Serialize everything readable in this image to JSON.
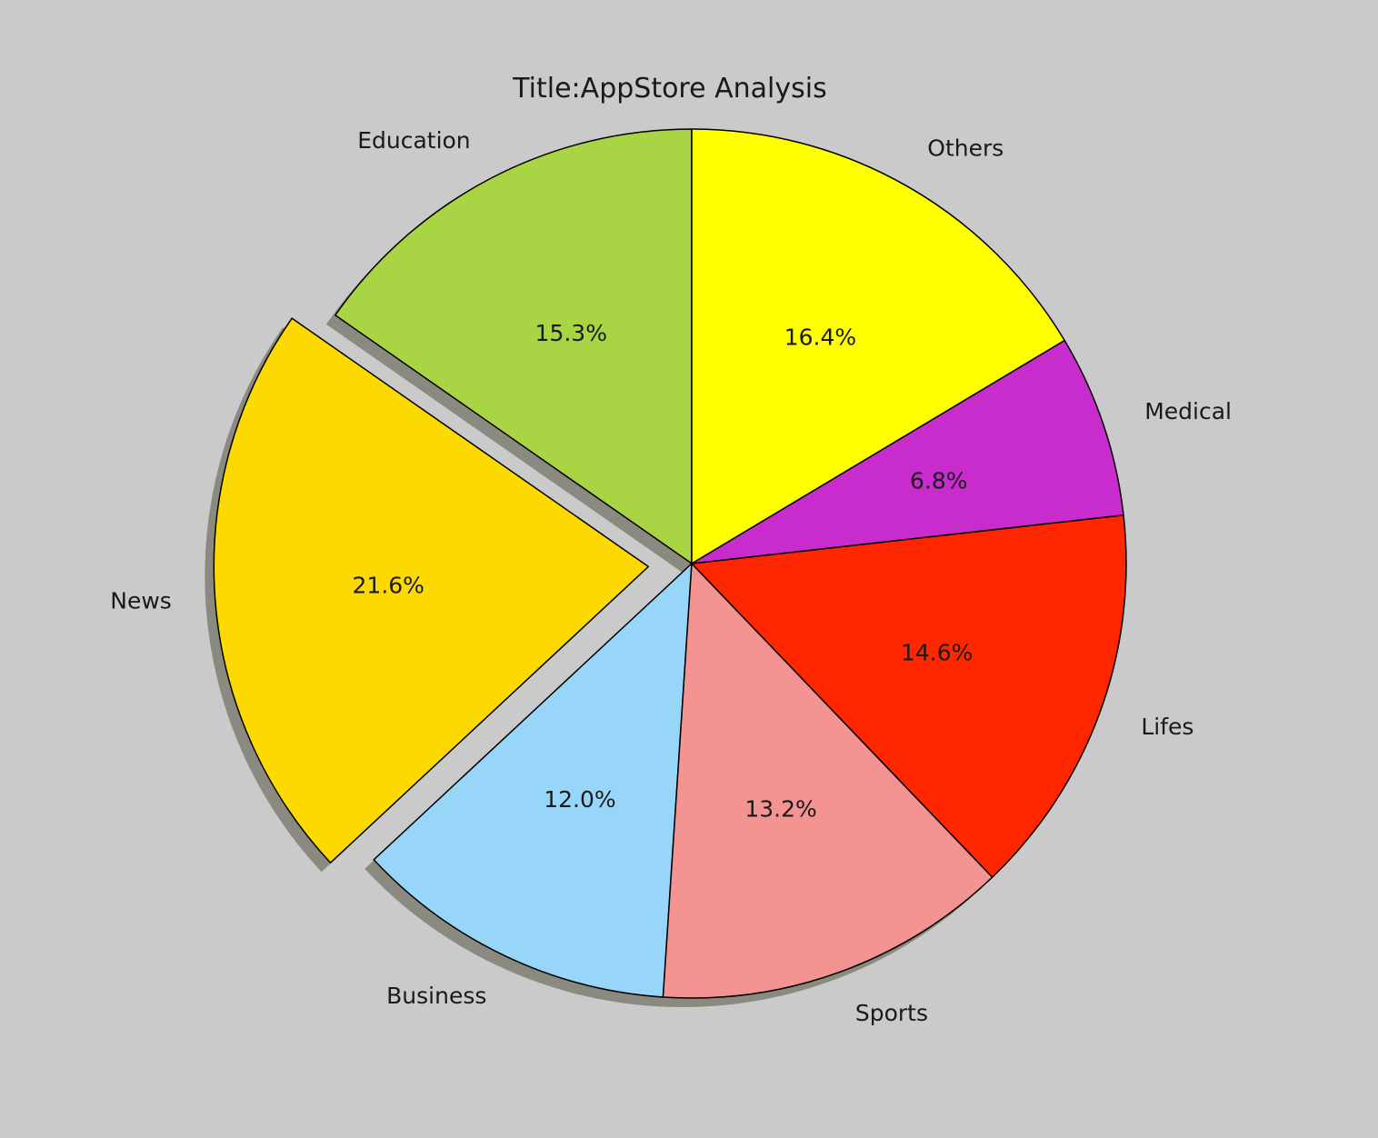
{
  "chart_data": {
    "type": "pie",
    "title": "Title:AppStore Analysis",
    "start_angle_deg": 90,
    "direction": "counterclockwise",
    "shadow": true,
    "slices": [
      {
        "label": "Education",
        "value": 15.3,
        "pct_label": "15.3%",
        "color": "#a9d443",
        "explode": false
      },
      {
        "label": "News",
        "value": 21.6,
        "pct_label": "21.6%",
        "color": "#fcd900",
        "explode": true
      },
      {
        "label": "Business",
        "value": 12.0,
        "pct_label": "12.0%",
        "color": "#98d6f9",
        "explode": false
      },
      {
        "label": "Sports",
        "value": 13.2,
        "pct_label": "13.2%",
        "color": "#f39492",
        "explode": false
      },
      {
        "label": "Lifes",
        "value": 14.6,
        "pct_label": "14.6%",
        "color": "#ff2600",
        "explode": false
      },
      {
        "label": "Medical",
        "value": 6.8,
        "pct_label": "6.8%",
        "color": "#c92ccc",
        "explode": false
      },
      {
        "label": "Others",
        "value": 16.4,
        "pct_label": "16.4%",
        "color": "#ffff00",
        "explode": false
      }
    ]
  }
}
